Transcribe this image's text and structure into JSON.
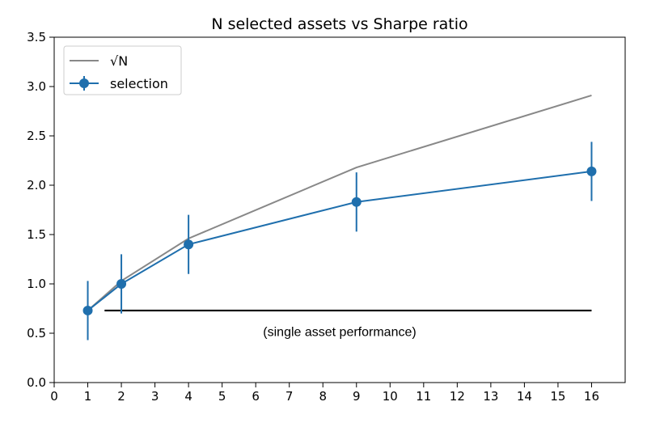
{
  "chart_data": {
    "type": "line",
    "title": "N selected assets vs Sharpe ratio",
    "xlabel": "",
    "ylabel": "",
    "xlim": [
      0,
      17
    ],
    "ylim": [
      0.0,
      3.5
    ],
    "xticks": [
      0,
      1,
      2,
      3,
      4,
      5,
      6,
      7,
      8,
      9,
      10,
      11,
      12,
      13,
      14,
      15,
      16
    ],
    "yticks": [
      "0.0",
      "0.5",
      "1.0",
      "1.5",
      "2.0",
      "2.5",
      "3.0",
      "3.5"
    ],
    "grid": false,
    "legend_position": "top-left",
    "series": [
      {
        "name": "√N",
        "color": "#888888",
        "x": [
          1,
          2,
          4,
          9,
          16
        ],
        "y": [
          0.73,
          1.03,
          1.46,
          2.18,
          2.91
        ]
      },
      {
        "name": "selection",
        "color": "#1f6fad",
        "marker": "circle",
        "x": [
          1,
          2,
          4,
          9,
          16
        ],
        "y": [
          0.73,
          1.0,
          1.4,
          1.83,
          2.14
        ],
        "yerr": [
          0.3,
          0.3,
          0.3,
          0.3,
          0.3
        ]
      }
    ],
    "hline": {
      "y": 0.73,
      "xmin": 1.5,
      "xmax": 16,
      "color": "#000000",
      "label": "(single asset performance)",
      "label_x": 8.5,
      "label_y": 0.52
    }
  }
}
